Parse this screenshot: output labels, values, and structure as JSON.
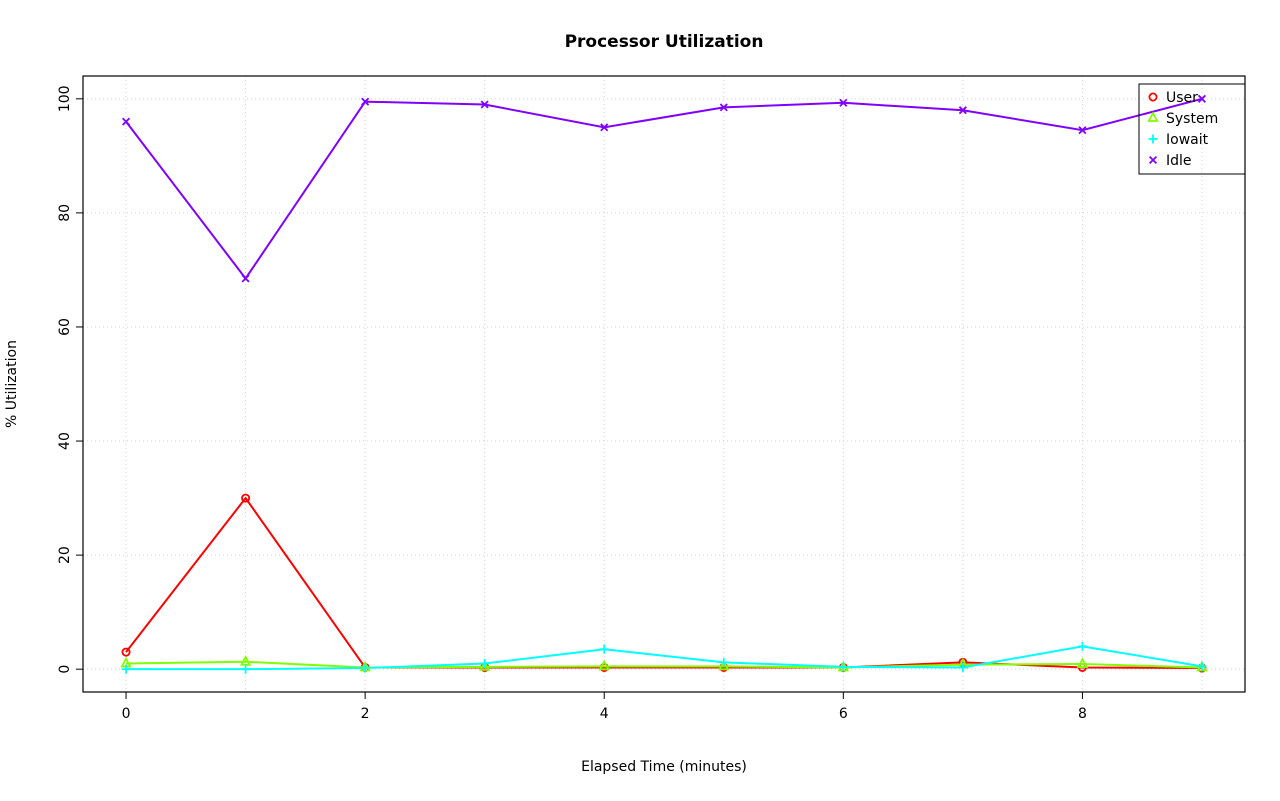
{
  "page": {
    "background": "#FFFFFF"
  },
  "chart_data": {
    "type": "line",
    "title": "Processor Utilization",
    "xlabel": "Elapsed Time (minutes)",
    "ylabel": "% Utilization",
    "x": [
      0,
      1,
      2,
      3,
      4,
      5,
      6,
      7,
      8,
      9
    ],
    "series": [
      {
        "name": "User",
        "color": "#FF0000",
        "marker": "circle",
        "values": [
          3,
          30,
          0.3,
          0.3,
          0.3,
          0.3,
          0.3,
          1.2,
          0.3,
          0.2
        ]
      },
      {
        "name": "System",
        "color": "#80FF00",
        "marker": "triangle",
        "values": [
          1,
          1.3,
          0.3,
          0.4,
          0.5,
          0.5,
          0.3,
          0.8,
          0.9,
          0.3
        ]
      },
      {
        "name": "Iowait",
        "color": "#00FFFF",
        "marker": "plus",
        "values": [
          0,
          0,
          0.2,
          1,
          3.5,
          1.2,
          0.4,
          0.3,
          4,
          0.5
        ]
      },
      {
        "name": "Idle",
        "color": "#8000FF",
        "marker": "x",
        "values": [
          96,
          68.5,
          99.5,
          99,
          95,
          98.5,
          99.3,
          98,
          94.5,
          100
        ]
      }
    ],
    "xlim": [
      0,
      9
    ],
    "ylim": [
      0,
      100
    ],
    "x_ticks": [
      0,
      2,
      4,
      6,
      8
    ],
    "y_ticks": [
      0,
      20,
      40,
      60,
      80,
      100
    ],
    "grid_x": [
      0,
      1,
      2,
      3,
      4,
      5,
      6,
      7,
      8,
      9
    ],
    "grid_y": [
      0,
      20,
      40,
      60,
      80,
      100
    ],
    "grid": true,
    "grid_color": "#D3D3D3",
    "axis_color": "#000000",
    "legend_position": "top-right",
    "legend": [
      "User",
      "System",
      "Iowait",
      "Idle"
    ]
  }
}
